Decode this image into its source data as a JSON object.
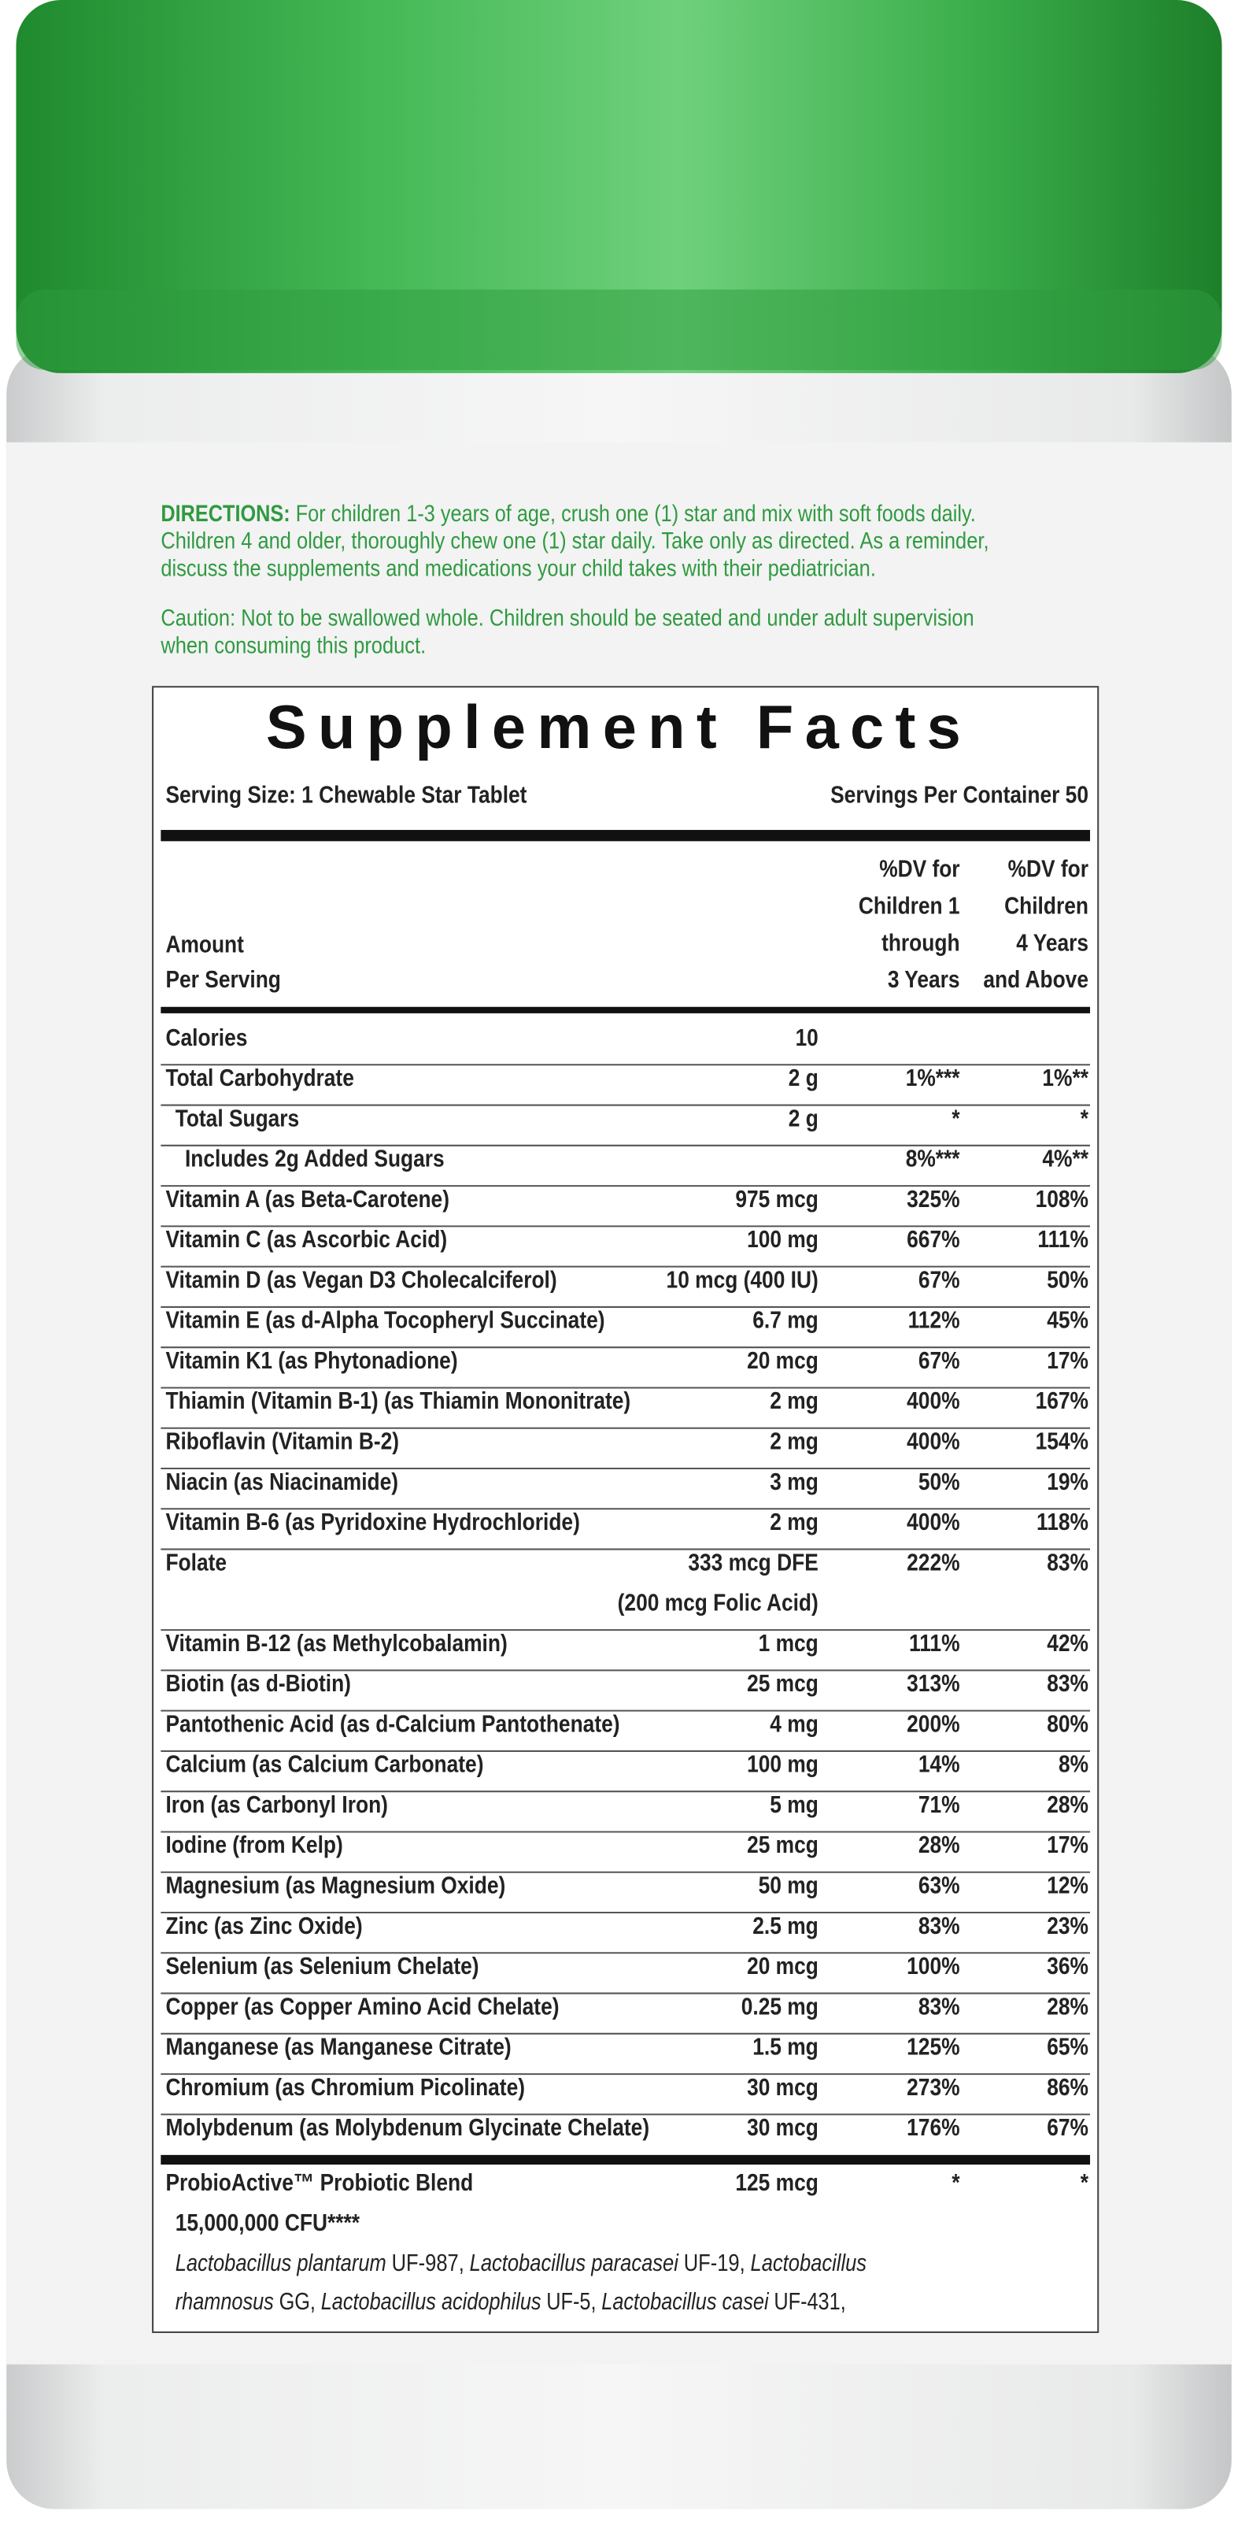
{
  "directions": {
    "label": "DIRECTIONS:",
    "lines": [
      "For children 1-3 years of age, crush one (1) star and mix with soft foods daily.",
      "Children 4 and older, thoroughly chew one (1) star daily. Take only as directed. As a reminder,",
      "discuss the supplements and medications your child takes with their pediatrician."
    ],
    "caution": [
      "Caution: Not to be swallowed whole. Children should be seated and under adult supervision",
      "when consuming this product."
    ]
  },
  "facts": {
    "title": "Supplement Facts",
    "serving_size": "Serving Size: 1 Chewable Star Tablet",
    "servings_per_container": "Servings Per Container 50",
    "header": {
      "amount": [
        "Amount",
        "Per Serving"
      ],
      "dv1": [
        "%DV for",
        "Children 1",
        "through",
        "3 Years"
      ],
      "dv2": [
        "%DV for",
        "Children",
        "4 Years",
        "and Above"
      ]
    },
    "rows": [
      {
        "name": "Calories",
        "amount": "10"
      },
      {
        "name": "Total Carbohydrate",
        "amount": "2 g",
        "dv1": "1%***",
        "dv2": "1%**"
      },
      {
        "name": "Total Sugars",
        "amount": "2 g",
        "dv1": "*",
        "dv2": "*",
        "indent": 1
      },
      {
        "name": "Includes 2g Added Sugars",
        "dv1": "8%***",
        "dv2": "4%**",
        "indent": 2
      },
      {
        "name": "Vitamin A (as Beta-Carotene)",
        "amount": "975 mcg",
        "dv1": "325%",
        "dv2": "108%"
      },
      {
        "name": "Vitamin C (as Ascorbic Acid)",
        "amount": "100 mg",
        "dv1": "667%",
        "dv2": "111%"
      },
      {
        "name": "Vitamin D (as Vegan D3 Cholecalciferol)",
        "amount": "10 mcg (400 IU)",
        "dv1": "67%",
        "dv2": "50%"
      },
      {
        "name": "Vitamin E (as d-Alpha Tocopheryl Succinate)",
        "amount": "6.7 mg",
        "dv1": "112%",
        "dv2": "45%"
      },
      {
        "name": "Vitamin K1 (as Phytonadione)",
        "amount": "20 mcg",
        "dv1": "67%",
        "dv2": "17%"
      },
      {
        "name": "Thiamin (Vitamin B-1) (as Thiamin Mononitrate)",
        "amount": "2 mg",
        "dv1": "400%",
        "dv2": "167%"
      },
      {
        "name": "Riboflavin (Vitamin B-2)",
        "amount": "2 mg",
        "dv1": "400%",
        "dv2": "154%"
      },
      {
        "name": "Niacin (as Niacinamide)",
        "amount": "3 mg",
        "dv1": "50%",
        "dv2": "19%"
      },
      {
        "name": "Vitamin B-6 (as Pyridoxine Hydrochloride)",
        "amount": "2 mg",
        "dv1": "400%",
        "dv2": "118%"
      },
      {
        "name": "Folate",
        "amount": "333 mcg DFE",
        "amount_detail": "(200 mcg Folic Acid)",
        "dv1": "222%",
        "dv2": "83%"
      },
      {
        "name": "Vitamin B-12 (as Methylcobalamin)",
        "amount": "1 mcg",
        "dv1": "111%",
        "dv2": "42%"
      },
      {
        "name": "Biotin (as d-Biotin)",
        "amount": "25 mcg",
        "dv1": "313%",
        "dv2": "83%"
      },
      {
        "name": "Pantothenic Acid (as d-Calcium Pantothenate)",
        "amount": "4 mg",
        "dv1": "200%",
        "dv2": "80%"
      },
      {
        "name": "Calcium (as Calcium Carbonate)",
        "amount": "100 mg",
        "dv1": "14%",
        "dv2": "8%"
      },
      {
        "name": "Iron (as Carbonyl Iron)",
        "amount": "5 mg",
        "dv1": "71%",
        "dv2": "28%"
      },
      {
        "name": "Iodine (from Kelp)",
        "amount": "25 mcg",
        "dv1": "28%",
        "dv2": "17%"
      },
      {
        "name": "Magnesium (as Magnesium Oxide)",
        "amount": "50 mg",
        "dv1": "63%",
        "dv2": "12%"
      },
      {
        "name": "Zinc (as Zinc Oxide)",
        "amount": "2.5 mg",
        "dv1": "83%",
        "dv2": "23%"
      },
      {
        "name": "Selenium (as Selenium Chelate)",
        "amount": "20 mcg",
        "dv1": "100%",
        "dv2": "36%"
      },
      {
        "name": "Copper (as Copper Amino Acid Chelate)",
        "amount": "0.25 mg",
        "dv1": "83%",
        "dv2": "28%"
      },
      {
        "name": "Manganese (as Manganese Citrate)",
        "amount": "1.5 mg",
        "dv1": "125%",
        "dv2": "65%"
      },
      {
        "name": "Chromium (as Chromium Picolinate)",
        "amount": "30 mcg",
        "dv1": "273%",
        "dv2": "86%"
      },
      {
        "name": "Molybdenum (as Molybdenum Glycinate Chelate)",
        "amount": "30 mcg",
        "dv1": "176%",
        "dv2": "67%"
      }
    ],
    "probiotic": {
      "name": "ProbioActive™ Probiotic Blend",
      "amount": "125 mcg",
      "dv1": "*",
      "dv2": "*",
      "cfu": "15,000,000 CFU****",
      "strains": [
        [
          {
            "text": "Lactobacillus plantarum",
            "italic": true
          },
          {
            "text": "UF-987,"
          },
          {
            "text": "Lactobacillus paracasei",
            "italic": true
          },
          {
            "text": "UF-19,"
          },
          {
            "text": "Lactobacillus",
            "italic": true
          }
        ],
        [
          {
            "text": "rhamnosus",
            "italic": true
          },
          {
            "text": "GG,"
          },
          {
            "text": "Lactobacillus acidophilus",
            "italic": true
          },
          {
            "text": "UF-5,"
          },
          {
            "text": "Lactobacillus casei",
            "italic": true
          },
          {
            "text": "UF-431,"
          }
        ]
      ]
    }
  }
}
